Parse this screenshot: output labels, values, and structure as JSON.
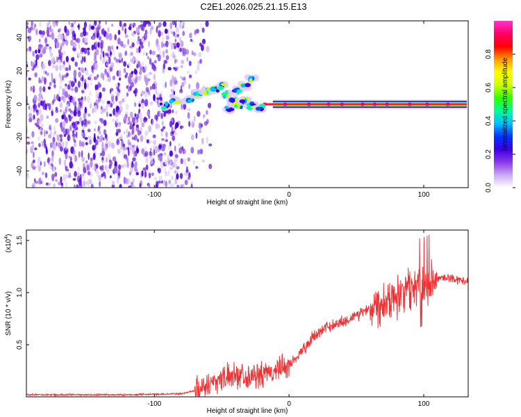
{
  "page": {
    "title": "C2E1.2026.025.21.15.E13"
  },
  "chart_data": [
    {
      "type": "heatmap",
      "xlabel": "Height of straight line (km)",
      "ylabel": "Frequency (Hz)",
      "xlim": [
        -195,
        133
      ],
      "ylim": [
        -50,
        50
      ],
      "xticks": [
        -100,
        0,
        100
      ],
      "yticks": [
        -40,
        -20,
        0,
        20,
        40
      ],
      "grid": false,
      "noise_region_km": [
        -195,
        -66
      ],
      "ridge": [
        {
          "x": -93,
          "y": -1
        },
        {
          "x": -85,
          "y": 2
        },
        {
          "x": -75,
          "y": 3
        },
        {
          "x": -68,
          "y": 6
        },
        {
          "x": -62,
          "y": 8
        },
        {
          "x": -55,
          "y": 9
        },
        {
          "x": -50,
          "y": 11
        },
        {
          "x": -46,
          "y": 6
        },
        {
          "x": -42,
          "y": 2
        },
        {
          "x": -38,
          "y": 8
        },
        {
          "x": -33,
          "y": 11
        },
        {
          "x": -28,
          "y": 15
        },
        {
          "x": -45,
          "y": -3
        },
        {
          "x": -38,
          "y": -1
        },
        {
          "x": -33,
          "y": 2
        },
        {
          "x": -28,
          "y": -1
        },
        {
          "x": -22,
          "y": -2
        },
        {
          "x": -12,
          "y": -1
        },
        {
          "x": 0,
          "y": 0
        },
        {
          "x": 132,
          "y": 0
        }
      ],
      "colorbar": {
        "label": "Normalized spectral amplitude",
        "ticks": [
          "0.0",
          "0.2",
          "0.4",
          "0.6",
          "0.8"
        ],
        "range": [
          0,
          1
        ],
        "colors": [
          "#ffffff",
          "#c9a8f2",
          "#8a36e8",
          "#3c00e6",
          "#0033ff",
          "#00bfff",
          "#00ff99",
          "#33ff00",
          "#ccff00",
          "#ffff00",
          "#ff9900",
          "#ff0000",
          "#ff0066",
          "#ff33cc"
        ]
      }
    },
    {
      "type": "line",
      "xlabel": "Height of straight line (km)",
      "ylabel": "SNR (10 * v/v)",
      "scale_label": "(x10",
      "scale_exp": "4",
      "scale_close": ")",
      "xlim": [
        -195,
        133
      ],
      "ylim": [
        0,
        1.6
      ],
      "xticks": [
        -100,
        0,
        100
      ],
      "yticks": [
        0.5,
        1.0,
        1.5
      ],
      "ytick_labels": [
        "0.5",
        "1.0",
        "1.5"
      ],
      "color": "#ee3333",
      "grid": false,
      "envelope": [
        {
          "x": -195,
          "y": 0.02
        },
        {
          "x": -120,
          "y": 0.02
        },
        {
          "x": -80,
          "y": 0.03
        },
        {
          "x": -70,
          "y": 0.06
        },
        {
          "x": -60,
          "y": 0.12
        },
        {
          "x": -50,
          "y": 0.18
        },
        {
          "x": -40,
          "y": 0.22
        },
        {
          "x": -30,
          "y": 0.2
        },
        {
          "x": -20,
          "y": 0.2
        },
        {
          "x": -10,
          "y": 0.25
        },
        {
          "x": 0,
          "y": 0.3
        },
        {
          "x": 10,
          "y": 0.45
        },
        {
          "x": 20,
          "y": 0.6
        },
        {
          "x": 30,
          "y": 0.68
        },
        {
          "x": 40,
          "y": 0.72
        },
        {
          "x": 50,
          "y": 0.78
        },
        {
          "x": 60,
          "y": 0.86
        },
        {
          "x": 70,
          "y": 0.92
        },
        {
          "x": 80,
          "y": 0.98
        },
        {
          "x": 90,
          "y": 1.05
        },
        {
          "x": 100,
          "y": 1.08
        },
        {
          "x": 110,
          "y": 1.14
        },
        {
          "x": 120,
          "y": 1.14
        },
        {
          "x": 133,
          "y": 1.1
        }
      ]
    }
  ]
}
